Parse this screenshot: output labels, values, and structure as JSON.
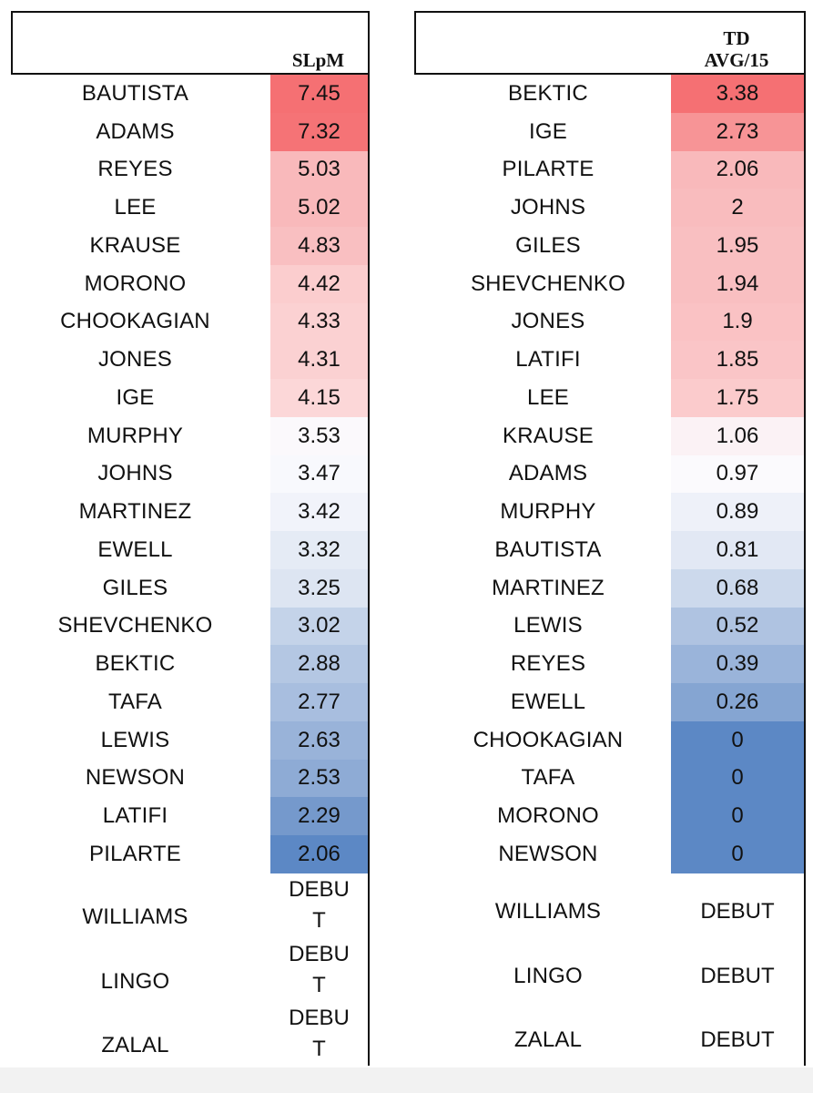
{
  "left": {
    "header": "SLpM",
    "rows": [
      {
        "name": "BAUTISTA",
        "value": "7.45",
        "color": "#f57073"
      },
      {
        "name": "ADAMS",
        "value": "7.32",
        "color": "#f57376"
      },
      {
        "name": "REYES",
        "value": "5.03",
        "color": "#f9b9bb"
      },
      {
        "name": "LEE",
        "value": "5.02",
        "color": "#f9b9bb"
      },
      {
        "name": "KRAUSE",
        "value": "4.83",
        "color": "#f9bfc1"
      },
      {
        "name": "MORONO",
        "value": "4.42",
        "color": "#fbcdce"
      },
      {
        "name": "CHOOKAGIAN",
        "value": "4.33",
        "color": "#fbd1d2"
      },
      {
        "name": "JONES",
        "value": "4.31",
        "color": "#fbd1d2"
      },
      {
        "name": "IGE",
        "value": "4.15",
        "color": "#fcd7d8"
      },
      {
        "name": "MURPHY",
        "value": "3.53",
        "color": "#fbf9fc"
      },
      {
        "name": "JOHNS",
        "value": "3.47",
        "color": "#f8f9fd"
      },
      {
        "name": "MARTINEZ",
        "value": "3.42",
        "color": "#f1f3fa"
      },
      {
        "name": "EWELL",
        "value": "3.32",
        "color": "#e5ebf5"
      },
      {
        "name": "GILES",
        "value": "3.25",
        "color": "#dde5f2"
      },
      {
        "name": "SHEVCHENKO",
        "value": "3.02",
        "color": "#c4d3e9"
      },
      {
        "name": "BEKTIC",
        "value": "2.88",
        "color": "#b4c7e3"
      },
      {
        "name": "TAFA",
        "value": "2.77",
        "color": "#a8bedf"
      },
      {
        "name": "LEWIS",
        "value": "2.63",
        "color": "#99b3d9"
      },
      {
        "name": "NEWSON",
        "value": "2.53",
        "color": "#8eabd5"
      },
      {
        "name": "LATIFI",
        "value": "2.29",
        "color": "#7599cc"
      },
      {
        "name": "PILARTE",
        "value": "2.06",
        "color": "#5c88c5"
      }
    ],
    "debut": [
      {
        "name": "WILLIAMS",
        "value_line1": "DEBU",
        "value_line2": "T"
      },
      {
        "name": "LINGO",
        "value_line1": "DEBU",
        "value_line2": "T"
      },
      {
        "name": "ZALAL",
        "value_line1": "DEBU",
        "value_line2": "T"
      }
    ]
  },
  "right": {
    "header": "TD\nAVG/15",
    "rows": [
      {
        "name": "BEKTIC",
        "value": "3.38",
        "color": "#f57073"
      },
      {
        "name": "IGE",
        "value": "2.73",
        "color": "#f79496"
      },
      {
        "name": "PILARTE",
        "value": "2.06",
        "color": "#f9b9bb"
      },
      {
        "name": "JOHNS",
        "value": "2",
        "color": "#f9bcbe"
      },
      {
        "name": "GILES",
        "value": "1.95",
        "color": "#f9bfc1"
      },
      {
        "name": "SHEVCHENKO",
        "value": "1.94",
        "color": "#f9bfc1"
      },
      {
        "name": "JONES",
        "value": "1.9",
        "color": "#fac2c4"
      },
      {
        "name": "LATIFI",
        "value": "1.85",
        "color": "#fac5c7"
      },
      {
        "name": "LEE",
        "value": "1.75",
        "color": "#fbcbcc"
      },
      {
        "name": "KRAUSE",
        "value": "1.06",
        "color": "#fbf2f5"
      },
      {
        "name": "ADAMS",
        "value": "0.97",
        "color": "#fbfafd"
      },
      {
        "name": "MURPHY",
        "value": "0.89",
        "color": "#eef1f9"
      },
      {
        "name": "BAUTISTA",
        "value": "0.81",
        "color": "#e2e8f4"
      },
      {
        "name": "MARTINEZ",
        "value": "0.68",
        "color": "#ccd9ec"
      },
      {
        "name": "LEWIS",
        "value": "0.52",
        "color": "#afc3e1"
      },
      {
        "name": "REYES",
        "value": "0.39",
        "color": "#9ab4da"
      },
      {
        "name": "EWELL",
        "value": "0.26",
        "color": "#85a5d2"
      },
      {
        "name": "CHOOKAGIAN",
        "value": "0",
        "color": "#5c88c5"
      },
      {
        "name": "TAFA",
        "value": "0",
        "color": "#5c88c5"
      },
      {
        "name": "MORONO",
        "value": "0",
        "color": "#5c88c5"
      },
      {
        "name": "NEWSON",
        "value": "0",
        "color": "#5c88c5"
      }
    ],
    "debut": [
      {
        "name": "WILLIAMS",
        "value": "DEBUT"
      },
      {
        "name": "LINGO",
        "value": "DEBUT"
      },
      {
        "name": "ZALAL",
        "value": "DEBUT"
      }
    ]
  }
}
